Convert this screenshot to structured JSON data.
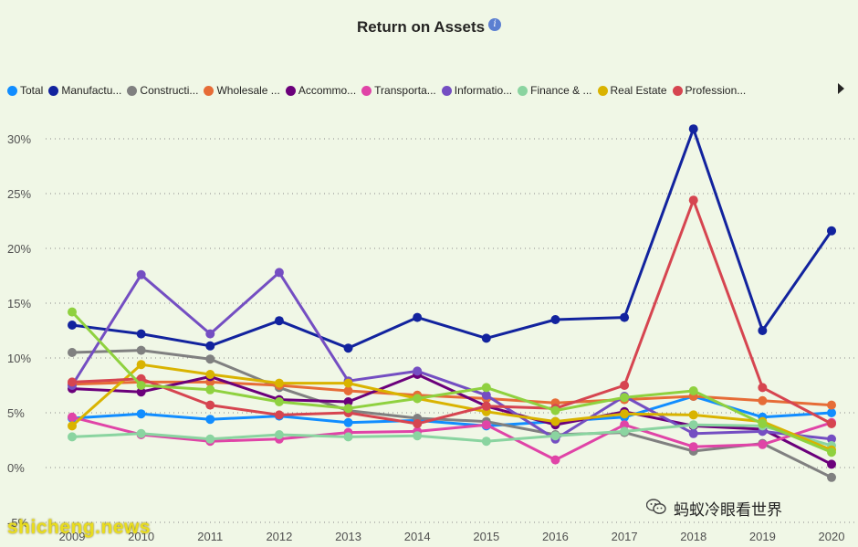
{
  "header": {
    "title": "Return on Assets",
    "info_icon": "info-icon"
  },
  "legend": {
    "items": [
      {
        "label": "Total",
        "color": "#118dff"
      },
      {
        "label": "Manufactu...",
        "color": "#12239e"
      },
      {
        "label": "Constructi...",
        "color": "#808080"
      },
      {
        "label": "Wholesale ...",
        "color": "#e66c37"
      },
      {
        "label": "Accommo...",
        "color": "#6b007b"
      },
      {
        "label": "Transporta...",
        "color": "#e044a7"
      },
      {
        "label": "Informatio...",
        "color": "#744ec2"
      },
      {
        "label": "Finance & ...",
        "color": "#8ad4a0"
      },
      {
        "label": "Real Estate",
        "color": "#d9b300"
      },
      {
        "label": "Profession...",
        "color": "#d64550"
      }
    ],
    "next_icon": "chevron-right-icon"
  },
  "watermarks": {
    "left": "shicheng.news",
    "right": "蚂蚁冷眼看世界",
    "right_icon": "wechat-icon"
  },
  "chart_data": {
    "type": "line",
    "title": "Return on Assets",
    "x": [
      2009,
      2010,
      2011,
      2012,
      2013,
      2014,
      2015,
      2016,
      2017,
      2018,
      2019,
      2020
    ],
    "x_tick_labels": [
      "2009",
      "2010",
      "2011",
      "2012",
      "2013",
      "2014",
      "2015",
      "2016",
      "2017",
      "2018",
      "2019",
      "2020"
    ],
    "ylim": [
      -5,
      30
    ],
    "y_ticks": [
      -5,
      0,
      5,
      10,
      15,
      20,
      25,
      30
    ],
    "y_tick_labels": [
      "-5%",
      "0%",
      "5%",
      "10%",
      "15%",
      "20%",
      "25%",
      "30%"
    ],
    "grid": "horizontal dotted",
    "legend_position": "top",
    "series": [
      {
        "name": "Total",
        "color": "#118dff",
        "values": [
          4.5,
          4.9,
          4.4,
          4.7,
          4.1,
          4.3,
          3.8,
          4.2,
          4.6,
          6.5,
          4.6,
          5.0
        ]
      },
      {
        "name": "Manufactu...",
        "color": "#12239e",
        "values": [
          13.0,
          12.2,
          11.1,
          13.4,
          10.9,
          13.7,
          11.8,
          13.5,
          13.7,
          30.9,
          12.5,
          21.6
        ]
      },
      {
        "name": "Constructi...",
        "color": "#808080",
        "values": [
          10.5,
          10.7,
          9.9,
          7.3,
          5.2,
          4.5,
          4.2,
          3.0,
          3.2,
          1.5,
          2.2,
          -0.9
        ]
      },
      {
        "name": "Wholesale ...",
        "color": "#e66c37",
        "values": [
          7.6,
          7.8,
          7.8,
          7.5,
          7.0,
          6.6,
          6.3,
          5.9,
          6.2,
          6.5,
          6.1,
          5.7
        ]
      },
      {
        "name": "Accommo...",
        "color": "#6b007b",
        "values": [
          7.2,
          6.9,
          8.3,
          6.2,
          6.0,
          8.5,
          5.6,
          3.9,
          5.1,
          3.8,
          3.5,
          0.3
        ]
      },
      {
        "name": "Transporta...",
        "color": "#e044a7",
        "values": [
          4.6,
          3.0,
          2.4,
          2.6,
          3.2,
          3.3,
          3.9,
          0.7,
          3.9,
          1.9,
          2.1,
          4.1
        ]
      },
      {
        "name": "Informatio...",
        "color": "#744ec2",
        "values": [
          7.5,
          17.6,
          12.2,
          17.8,
          7.9,
          8.8,
          6.6,
          2.6,
          6.5,
          3.1,
          3.3,
          2.6
        ]
      },
      {
        "name": "Finance & ...",
        "color": "#8ad4a0",
        "values": [
          2.8,
          3.1,
          2.6,
          3.0,
          2.8,
          2.9,
          2.4,
          2.9,
          3.3,
          3.9,
          3.8,
          2.0
        ]
      },
      {
        "name": "Real Estate",
        "color": "#d9b300",
        "values": [
          3.8,
          9.4,
          8.5,
          7.7,
          7.7,
          6.3,
          5.1,
          4.2,
          4.9,
          4.8,
          4.2,
          1.6
        ]
      },
      {
        "name": "Profession...",
        "color": "#d64550",
        "values": [
          7.8,
          8.1,
          5.7,
          4.8,
          5.0,
          4.0,
          5.6,
          5.4,
          7.5,
          24.4,
          7.3,
          4.0
        ]
      },
      {
        "name": "",
        "color": "#8fd13f",
        "values": [
          14.2,
          7.5,
          7.1,
          6.0,
          5.4,
          6.3,
          7.3,
          5.2,
          6.4,
          7.0,
          4.0,
          1.4
        ]
      }
    ]
  }
}
